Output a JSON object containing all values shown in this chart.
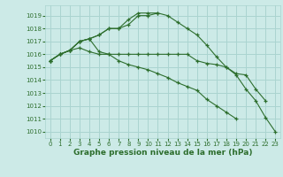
{
  "title": "Graphe pression niveau de la mer (hPa)",
  "bg_color": "#cceae7",
  "grid_color": "#aad4d0",
  "line_color": "#2d6e2d",
  "marker": "+",
  "xlim": [
    -0.5,
    23.5
  ],
  "ylim": [
    1009.5,
    1019.8
  ],
  "yticks": [
    1010,
    1011,
    1012,
    1013,
    1014,
    1015,
    1016,
    1017,
    1018,
    1019
  ],
  "xticks": [
    0,
    1,
    2,
    3,
    4,
    5,
    6,
    7,
    8,
    9,
    10,
    11,
    12,
    13,
    14,
    15,
    16,
    17,
    18,
    19,
    20,
    21,
    22,
    23
  ],
  "series": [
    [
      1015.5,
      1016.0,
      1016.3,
      1016.5,
      1016.2,
      1016.0,
      1016.0,
      1016.0,
      1016.0,
      1016.0,
      1016.0,
      1016.0,
      1016.0,
      1016.0,
      1016.0,
      1015.5,
      1015.3,
      1015.2,
      1015.0,
      1014.4,
      1013.3,
      1012.4,
      1011.1,
      1010.0
    ],
    [
      1015.5,
      1016.0,
      1016.3,
      1017.0,
      1017.2,
      1017.5,
      1018.0,
      1018.0,
      1018.3,
      1019.0,
      1019.0,
      1019.2,
      1019.0,
      1018.5,
      1018.0,
      1017.5,
      1016.7,
      1015.8,
      1015.0,
      1014.5,
      1014.4,
      1013.3,
      1012.4,
      null
    ],
    [
      1015.5,
      1016.0,
      1016.3,
      1017.0,
      1017.2,
      1017.5,
      1018.0,
      1018.0,
      1018.7,
      1019.2,
      1019.2,
      1019.2,
      null,
      null,
      null,
      null,
      null,
      null,
      null,
      null,
      null,
      null,
      null,
      null
    ],
    [
      1015.5,
      1016.0,
      1016.3,
      1017.0,
      1017.2,
      1016.2,
      1016.0,
      1015.5,
      1015.2,
      1015.0,
      1014.8,
      1014.5,
      1014.2,
      1013.8,
      1013.5,
      1013.2,
      1012.5,
      1012.0,
      1011.5,
      1011.0,
      null,
      null,
      null,
      null
    ]
  ],
  "ylabel_fontsize": 5.5,
  "xlabel_fontsize": 6.0,
  "title_fontsize": 6.5,
  "tick_labelsize": 5.0
}
